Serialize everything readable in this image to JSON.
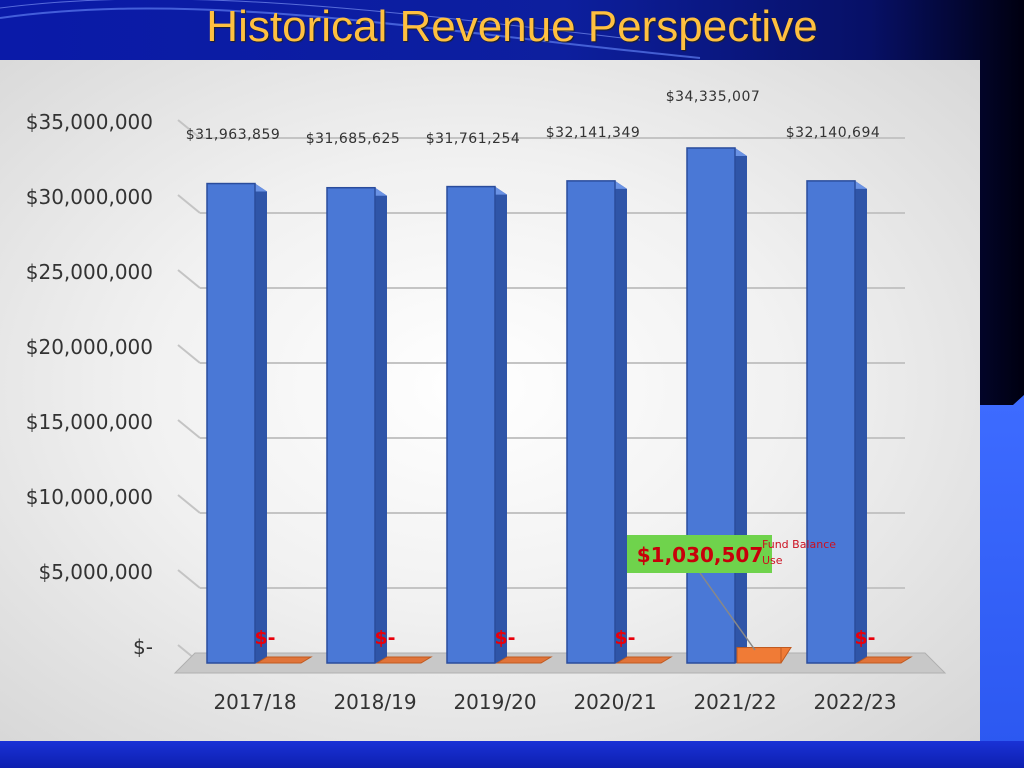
{
  "slide": {
    "title": "Historical Revenue Perspective"
  },
  "colors": {
    "revenue_bar": "#4a78d6",
    "fund_balance_bar": "#f07b36",
    "callout_bg": "#6fd34c",
    "zero_label": "#e8000b",
    "small_label": "#cc1020"
  },
  "chart_data": {
    "type": "bar",
    "categories": [
      "2017/18",
      "2018/19",
      "2019/20",
      "2020/21",
      "2021/22",
      "2022/23"
    ],
    "series": [
      {
        "values": [
          31963859,
          31685625,
          31761254,
          32141349,
          34335007,
          32140694
        ],
        "labels": [
          "$31,963,859",
          "$31,685,625",
          "$31,761,254",
          "$32,141,349",
          "$34,335,007",
          "$32,140,694"
        ]
      },
      {
        "name": "Fund Balance Use",
        "values": [
          0,
          0,
          0,
          0,
          1030507,
          0
        ],
        "labels": [
          "$-",
          "$-",
          "$-",
          "$-",
          "$1,030,507",
          "$-"
        ]
      }
    ],
    "yticks": [
      0,
      5000000,
      10000000,
      15000000,
      20000000,
      25000000,
      30000000,
      35000000
    ],
    "ytick_labels": [
      "$-",
      "$5,000,000",
      "$10,000,000",
      "$15,000,000",
      "$20,000,000",
      "$25,000,000",
      "$30,000,000",
      "$35,000,000"
    ],
    "ylim": [
      0,
      35000000
    ],
    "grid": true,
    "title": "",
    "xlabel": "",
    "ylabel": "",
    "annotation": {
      "text": "$1,030,507",
      "note_line1": "Fund Balance",
      "note_line2": "Use",
      "category": "2021/22"
    }
  }
}
